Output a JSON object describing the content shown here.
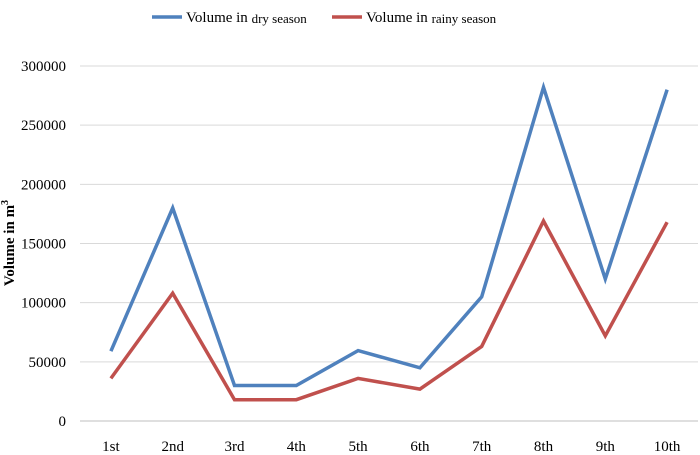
{
  "chart_data": {
    "type": "line",
    "title": "",
    "xlabel": "",
    "ylabel": "Volume in m",
    "ylabel_superscript": "3",
    "categories": [
      "1st",
      "2nd",
      "3rd",
      "4th",
      "5th",
      "6th",
      "7th",
      "8th",
      "9th",
      "10th"
    ],
    "ylim": [
      0,
      300000
    ],
    "yticks": [
      0,
      50000,
      100000,
      150000,
      200000,
      250000,
      300000
    ],
    "ytick_labels": [
      "0",
      "50000",
      "100000",
      "150000",
      "200000",
      "250000",
      "300000"
    ],
    "grid": true,
    "legend_position": "top",
    "series": [
      {
        "name": "Volume in dry season",
        "name_prefix": "Volume in ",
        "name_suffix": "dry season",
        "color": "#4F81BD",
        "values": [
          59000,
          180000,
          30000,
          30000,
          59500,
          45000,
          105000,
          282000,
          120000,
          280000
        ]
      },
      {
        "name": "Volume in rainy season",
        "name_prefix": "Volume in ",
        "name_suffix": "rainy season",
        "color": "#C0504D",
        "values": [
          36000,
          108000,
          18000,
          18000,
          36000,
          27000,
          63000,
          169000,
          72000,
          168000
        ]
      }
    ]
  }
}
